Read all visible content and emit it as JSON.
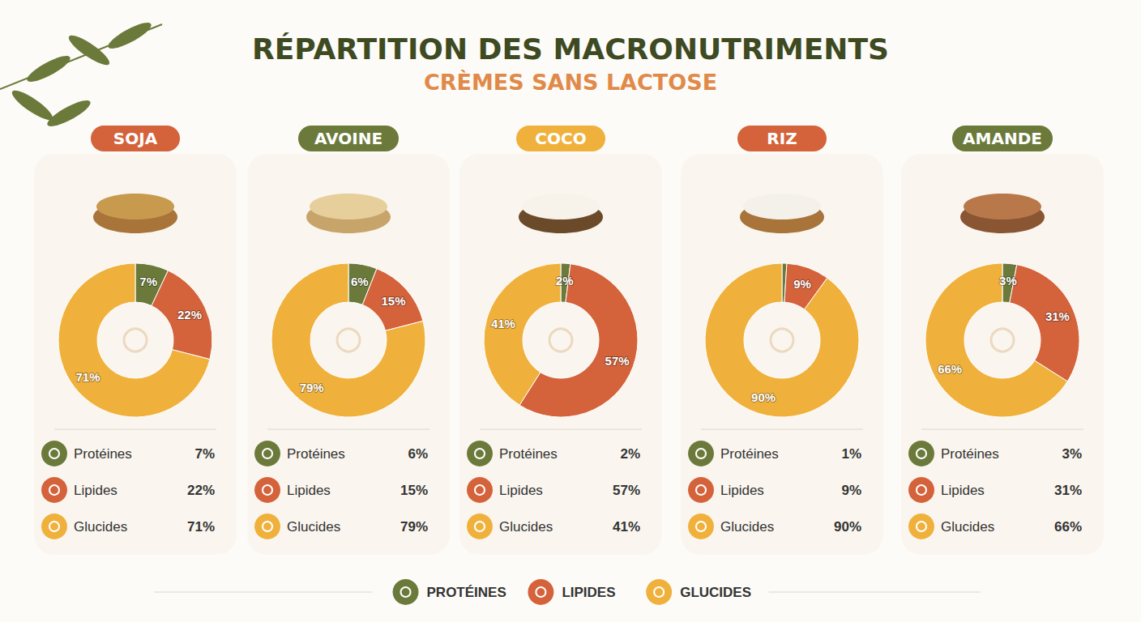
{
  "title": "RÉPARTITION DES MACRONUTRIMENTS",
  "subtitle": "CRÈMES SANS LACTOSE",
  "footer_legend": [
    "PROTÉINES",
    "LIPIDES",
    "GLUCIDES"
  ],
  "chart_data": [
    {
      "type": "pie",
      "title": "SOJA",
      "categories": [
        "Protéines",
        "Lipides",
        "Glucides"
      ],
      "values": [
        7,
        22,
        71
      ],
      "value_labels": [
        "7%",
        "22%",
        "71%"
      ],
      "colors": [
        "#6b7a3a",
        "#d4623a",
        "#f0b13c"
      ],
      "data_labels": true
    },
    {
      "type": "pie",
      "title": "AVOINE",
      "categories": [
        "Protéines",
        "Lipides",
        "Glucides"
      ],
      "values": [
        6,
        15,
        79
      ],
      "value_labels": [
        "6%",
        "15%",
        "79%"
      ],
      "colors": [
        "#6b7a3a",
        "#d4623a",
        "#f0b13c"
      ],
      "data_labels": true
    },
    {
      "type": "pie",
      "title": "COCO",
      "categories": [
        "Protéines",
        "Lipides",
        "Glucides"
      ],
      "values": [
        2,
        57,
        41
      ],
      "value_labels": [
        "2%",
        "57%",
        "41%"
      ],
      "colors": [
        "#6b7a3a",
        "#d4623a",
        "#f0b13c"
      ],
      "data_labels": true
    },
    {
      "type": "pie",
      "title": "RIZ",
      "categories": [
        "Protéines",
        "Lipides",
        "Glucides"
      ],
      "values": [
        1,
        9,
        90
      ],
      "value_labels": [
        "1%",
        "9%",
        "90%"
      ],
      "colors": [
        "#6b7a3a",
        "#d4623a",
        "#f0b13c"
      ],
      "data_labels": true
    },
    {
      "type": "pie",
      "title": "AMANDE",
      "categories": [
        "Protéines",
        "Lipides",
        "Glucides"
      ],
      "values": [
        3,
        31,
        66
      ],
      "value_labels": [
        "3%",
        "31%",
        "66%"
      ],
      "colors": [
        "#6b7a3a",
        "#d4623a",
        "#f0b13c"
      ],
      "data_labels": true
    }
  ]
}
